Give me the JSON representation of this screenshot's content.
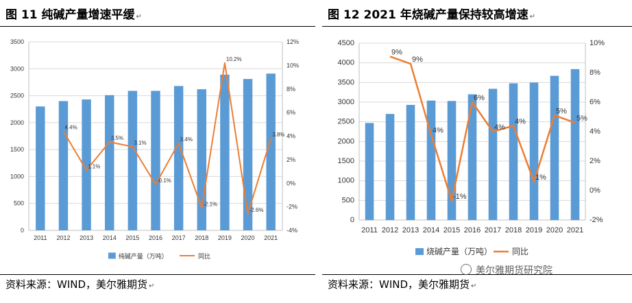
{
  "left": {
    "title": "图 11  纯碱产量增速平缓",
    "source": "资料来源：WIND，美尔雅期货",
    "mark": "↵"
  },
  "right": {
    "title": "图 12    2021 年烧碱产量保持较高增速",
    "source": "资料来源：WIND，美尔雅期货",
    "mark": "↵"
  },
  "watermark": "美尔雅期货研究院",
  "colors": {
    "bar": "#5b9bd5",
    "line": "#ed7d31",
    "grid": "#d9d9d9",
    "axis": "#bfbfbf"
  },
  "chart_data": [
    {
      "type": "bar",
      "title": "纯碱产量增速平缓",
      "categories": [
        "2011",
        "2012",
        "2013",
        "2014",
        "2015",
        "2016",
        "2017",
        "2018",
        "2019",
        "2020",
        "2021"
      ],
      "series": [
        {
          "name": "纯碱产量（万吨）",
          "type": "bar",
          "axis": "left",
          "values": [
            2300,
            2400,
            2430,
            2510,
            2590,
            2590,
            2680,
            2620,
            2890,
            2810,
            2910
          ]
        },
        {
          "name": "同比",
          "type": "line",
          "axis": "right",
          "values": [
            null,
            4.4,
            1.1,
            3.5,
            3.1,
            -0.1,
            3.4,
            -2.1,
            10.2,
            -2.6,
            3.8
          ],
          "labels": [
            "",
            "4.4%",
            "1.1%",
            "3.5%",
            "3.1%",
            "-0.1%",
            "3.4%",
            "-2.1%",
            "10.2%",
            "-2.6%",
            "3.8%"
          ]
        }
      ],
      "ylim": [
        0,
        3500
      ],
      "yticks": [
        "0",
        "500",
        "1000",
        "1500",
        "2000",
        "2500",
        "3000",
        "3500"
      ],
      "y2lim": [
        -4,
        12
      ],
      "y2ticks": [
        "-4%",
        "-2%",
        "0%",
        "2%",
        "4%",
        "6%",
        "8%",
        "10%",
        "12%"
      ],
      "legend": [
        "纯碱产量（万吨）",
        "同比"
      ]
    },
    {
      "type": "bar",
      "title": "2021 年烧碱产量保持较高增速",
      "categories": [
        "2011",
        "2012",
        "2013",
        "2014",
        "2015",
        "2016",
        "2017",
        "2018",
        "2019",
        "2020",
        "2021"
      ],
      "series": [
        {
          "name": "烧碱产量（万吨）",
          "type": "bar",
          "axis": "left",
          "values": [
            2470,
            2700,
            2930,
            3040,
            3030,
            3200,
            3340,
            3480,
            3500,
            3670,
            3840
          ]
        },
        {
          "name": "同比",
          "type": "line",
          "axis": "right",
          "values": [
            null,
            9.1,
            8.6,
            3.8,
            -0.7,
            6.0,
            4.0,
            4.4,
            0.6,
            5.1,
            4.6
          ],
          "labels": [
            "",
            "9%",
            "9%",
            "4%",
            "-1%",
            "6%",
            "4%",
            "4%",
            "1%",
            "5%",
            "5%"
          ]
        }
      ],
      "ylim": [
        0,
        4500
      ],
      "yticks": [
        "0",
        "500",
        "1000",
        "1500",
        "2000",
        "2500",
        "3000",
        "3500",
        "4000",
        "4500"
      ],
      "y2lim": [
        -2,
        10
      ],
      "y2ticks": [
        "-2%",
        "0%",
        "2%",
        "4%",
        "6%",
        "8%",
        "10%"
      ],
      "legend": [
        "烧碱产量（万吨）",
        "同比"
      ]
    }
  ]
}
